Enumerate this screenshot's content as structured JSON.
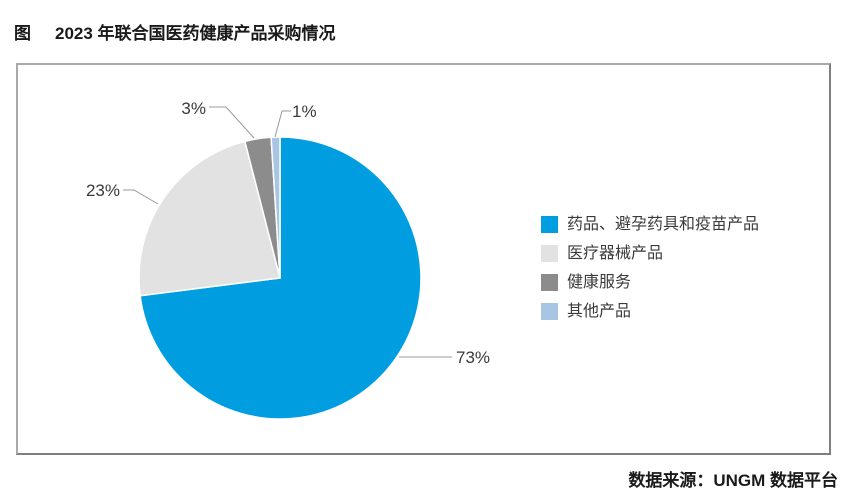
{
  "title": {
    "figure_label": "图",
    "text": "2023 年联合国医药健康产品采购情况"
  },
  "source": "数据来源：UNGM 数据平台",
  "colors": {
    "accent_blue": "#009EE0",
    "light_gray": "#E2E2E2",
    "dark_gray": "#8C8C8C",
    "light_blue": "#A8C6E4",
    "frame_border": "#A9A9A9",
    "leader_line": "#999999",
    "label_text": "#3A3A3A"
  },
  "chart_data": {
    "type": "pie",
    "title": "2023 年联合国医药健康产品采购情况",
    "categories": [
      "药品、避孕药具和疫苗产品",
      "医疗器械产品",
      "健康服务",
      "其他产品"
    ],
    "values": [
      73,
      23,
      3,
      1
    ],
    "unit": "%",
    "labels": [
      "73%",
      "23%",
      "3%",
      "1%"
    ],
    "colors": [
      "#009EE0",
      "#E2E2E2",
      "#8C8C8C",
      "#A8C6E4"
    ],
    "start_angle_deg": 0,
    "direction": "clockwise",
    "legend_position": "right",
    "source": "数据来源：UNGM 数据平台"
  },
  "legend": {
    "items": [
      {
        "label": "药品、避孕药具和疫苗产品",
        "color": "#009EE0"
      },
      {
        "label": "医疗器械产品",
        "color": "#E2E2E2"
      },
      {
        "label": "健康服务",
        "color": "#8C8C8C"
      },
      {
        "label": "其他产品",
        "color": "#A8C6E4"
      }
    ]
  }
}
